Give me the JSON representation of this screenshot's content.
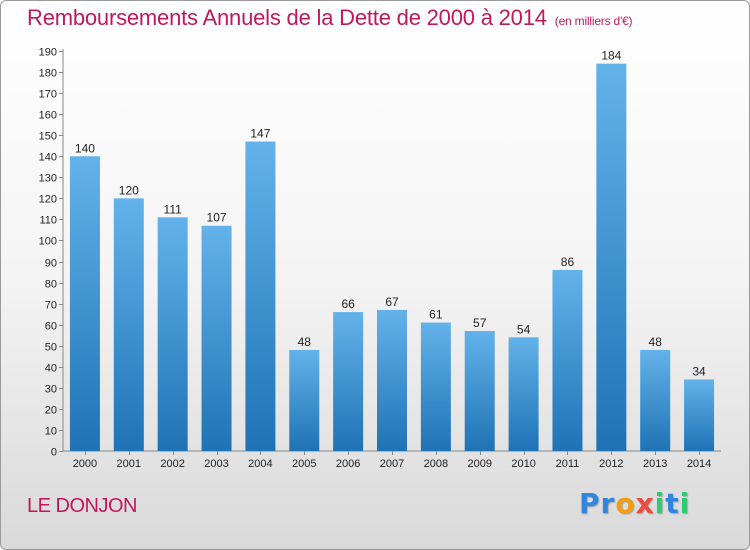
{
  "chart_data": {
    "type": "bar",
    "title": "Remboursements Annuels de la Dette de 2000 à 2014",
    "subtitle": "(en milliers d'€)",
    "categories": [
      "2000",
      "2001",
      "2002",
      "2003",
      "2004",
      "2005",
      "2006",
      "2007",
      "2008",
      "2009",
      "2010",
      "2011",
      "2012",
      "2013",
      "2014"
    ],
    "values": [
      140,
      120,
      111,
      107,
      147,
      48,
      66,
      67,
      61,
      57,
      54,
      86,
      184,
      48,
      34
    ],
    "ylim": [
      0,
      190
    ],
    "yticks": [
      0,
      10,
      20,
      30,
      40,
      50,
      60,
      70,
      80,
      90,
      100,
      110,
      120,
      130,
      140,
      150,
      160,
      170,
      180,
      190
    ],
    "xlabel": "",
    "ylabel": "",
    "grid": false,
    "colors": {
      "bar_light": "#63b2ea",
      "bar_dark": "#1f73b5",
      "accent": "#c2185b"
    }
  },
  "footer": {
    "location": "LE DONJON",
    "logo": [
      {
        "char": "P",
        "color": "#2e86de"
      },
      {
        "char": "r",
        "color": "#2e86de"
      },
      {
        "char": "o",
        "color": "#f39c12"
      },
      {
        "char": "x",
        "color": "#e74c3c"
      },
      {
        "char": "i",
        "color": "#2ecc71"
      },
      {
        "char": "t",
        "color": "#2e86de"
      },
      {
        "char": "i",
        "color": "#2ecc71"
      }
    ]
  }
}
